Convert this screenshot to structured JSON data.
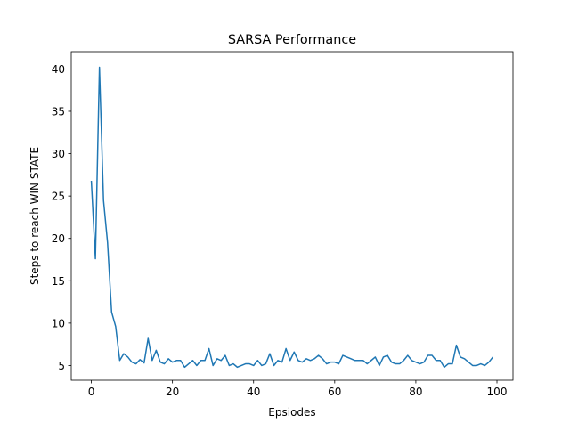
{
  "chart_data": {
    "type": "line",
    "title": "SARSA Performance",
    "xlabel": "Epsiodes",
    "ylabel": "Steps to reach WIN STATE",
    "xlim": [
      -4.95,
      103.95
    ],
    "ylim": [
      3.2625,
      42.0375
    ],
    "xticks": [
      0,
      20,
      40,
      60,
      80,
      100
    ],
    "yticks": [
      5,
      10,
      15,
      20,
      25,
      30,
      35,
      40
    ],
    "grid": false,
    "line_color": "#1f77b4",
    "series": [
      {
        "x": [
          0,
          1,
          2,
          3,
          4,
          5,
          6,
          7,
          8,
          9,
          10,
          11,
          12,
          13,
          14,
          15,
          16,
          17,
          18,
          19,
          20,
          21,
          22,
          23,
          24,
          25,
          26,
          27,
          28,
          29,
          30,
          31,
          32,
          33,
          34,
          35,
          36,
          37,
          38,
          39,
          40,
          41,
          42,
          43,
          44,
          45,
          46,
          47,
          48,
          49,
          50,
          51,
          52,
          53,
          54,
          55,
          56,
          57,
          58,
          59,
          60,
          61,
          62,
          63,
          64,
          65,
          66,
          67,
          68,
          69,
          70,
          71,
          72,
          73,
          74,
          75,
          76,
          77,
          78,
          79,
          80,
          81,
          82,
          83,
          84,
          85,
          86,
          87,
          88,
          89,
          90,
          91,
          92,
          93,
          94,
          95,
          96,
          97,
          98,
          99
        ],
        "y": [
          26.8,
          17.6,
          40.2,
          24.5,
          19.5,
          11.3,
          9.6,
          5.6,
          6.4,
          6.0,
          5.4,
          5.2,
          5.7,
          5.3,
          8.2,
          5.6,
          6.8,
          5.4,
          5.2,
          5.8,
          5.4,
          5.6,
          5.6,
          4.8,
          5.2,
          5.6,
          5.0,
          5.6,
          5.6,
          7.0,
          5.0,
          5.8,
          5.6,
          6.2,
          5.0,
          5.2,
          4.8,
          5.0,
          5.2,
          5.2,
          5.0,
          5.6,
          5.0,
          5.2,
          6.4,
          5.0,
          5.6,
          5.4,
          7.0,
          5.6,
          6.6,
          5.6,
          5.4,
          5.8,
          5.6,
          5.8,
          6.2,
          5.8,
          5.2,
          5.4,
          5.4,
          5.2,
          6.2,
          6.0,
          5.8,
          5.6,
          5.6,
          5.6,
          5.2,
          5.6,
          6.0,
          5.0,
          6.0,
          6.2,
          5.4,
          5.2,
          5.2,
          5.6,
          6.2,
          5.6,
          5.4,
          5.2,
          5.4,
          6.2,
          6.2,
          5.6,
          5.6,
          4.8,
          5.2,
          5.2,
          7.4,
          6.0,
          5.8,
          5.4,
          5.0,
          5.0,
          5.2,
          5.0,
          5.4,
          6.0
        ]
      }
    ]
  }
}
